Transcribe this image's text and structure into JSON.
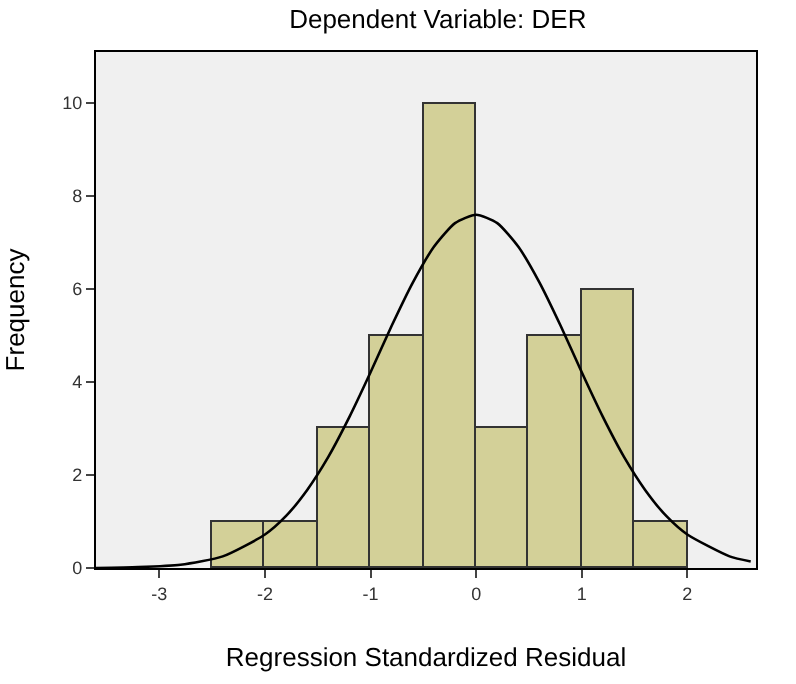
{
  "chart_data": {
    "type": "histogram",
    "title": "Dependent Variable: DER",
    "xlabel": "Regression Standardized Residual",
    "ylabel": "Frequency",
    "bins": [
      -2.5,
      -2,
      -1.5,
      -1,
      -0.5,
      0,
      0.5,
      1,
      1.5,
      2
    ],
    "series": [
      {
        "color": "#d3d098",
        "values": [
          1,
          1,
          3,
          5,
          10,
          3,
          5,
          6,
          1
        ]
      },
      {
        "type": "line",
        "color": "#000000",
        "x": [
          -3.6,
          -3.2,
          -2.8,
          -2.4,
          -2.0,
          -1.8,
          -1.6,
          -1.4,
          -1.2,
          -1.0,
          -0.8,
          -0.6,
          -0.4,
          -0.2,
          0,
          0.2,
          0.4,
          0.6,
          0.8,
          1.0,
          1.2,
          1.4,
          1.6,
          1.8,
          2.0,
          2.4,
          2.6
        ],
        "values": [
          0,
          0.02,
          0.07,
          0.25,
          0.72,
          1.12,
          1.68,
          2.39,
          3.25,
          4.21,
          5.21,
          6.14,
          6.91,
          7.42,
          7.6,
          7.42,
          6.91,
          6.14,
          5.21,
          4.21,
          3.25,
          2.39,
          1.68,
          1.12,
          0.72,
          0.25,
          0.14
        ]
      }
    ],
    "xlim": [
      -3.6,
      2.65
    ],
    "xticks": [
      -3,
      -2,
      -1,
      0,
      1,
      2
    ],
    "ylim": [
      0,
      11.1
    ],
    "yticks": [
      0,
      2,
      4,
      6,
      8,
      10
    ],
    "grid": false,
    "marker": "none",
    "line_style": "solid"
  }
}
